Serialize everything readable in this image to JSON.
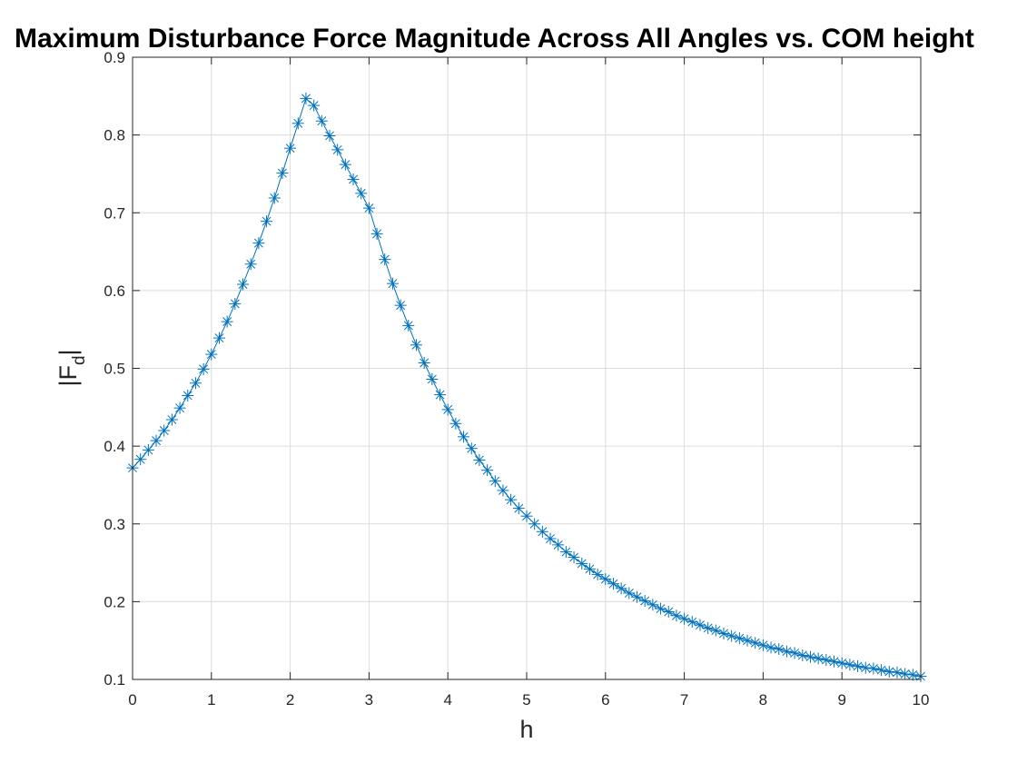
{
  "chart_data": {
    "type": "line",
    "title": "Maximum Disturbance Force Magnitude Across All Angles vs. COM height",
    "xlabel": "h",
    "ylabel": {
      "main": "|F",
      "subscript": "d",
      "suffix": "|"
    },
    "xlim": [
      0,
      10
    ],
    "ylim": [
      0.1,
      0.9
    ],
    "xticks": [
      0,
      1,
      2,
      3,
      4,
      5,
      6,
      7,
      8,
      9,
      10
    ],
    "yticks": [
      0.1,
      0.2,
      0.3,
      0.4,
      0.5,
      0.6,
      0.7,
      0.8,
      0.9
    ],
    "xtick_labels": [
      "0",
      "1",
      "2",
      "3",
      "4",
      "5",
      "6",
      "7",
      "8",
      "9",
      "10"
    ],
    "ytick_labels": [
      "0.1",
      "0.2",
      "0.3",
      "0.4",
      "0.5",
      "0.6",
      "0.7",
      "0.8",
      "0.9"
    ],
    "grid": true,
    "marker": "asterisk",
    "series": [
      {
        "color": "#0072BD",
        "x": [
          0.0,
          0.1,
          0.2,
          0.3,
          0.4,
          0.5,
          0.6,
          0.7,
          0.8,
          0.9,
          1.0,
          1.1,
          1.2,
          1.3,
          1.4,
          1.5,
          1.6,
          1.7,
          1.8,
          1.9,
          2.0,
          2.1,
          2.2,
          2.3,
          2.4,
          2.5,
          2.6,
          2.7,
          2.8,
          2.9,
          3.0,
          3.1,
          3.2,
          3.3,
          3.4,
          3.5,
          3.6,
          3.7,
          3.8,
          3.9,
          4.0,
          4.1,
          4.2,
          4.3,
          4.4,
          4.5,
          4.6,
          4.7,
          4.8,
          4.9,
          5.0,
          5.1,
          5.2,
          5.3,
          5.4,
          5.5,
          5.6,
          5.7,
          5.8,
          5.9,
          6.0,
          6.1,
          6.2,
          6.3,
          6.4,
          6.5,
          6.6,
          6.7,
          6.8,
          6.9,
          7.0,
          7.1,
          7.2,
          7.3,
          7.4,
          7.5,
          7.6,
          7.7,
          7.8,
          7.9,
          8.0,
          8.1,
          8.2,
          8.3,
          8.4,
          8.5,
          8.6,
          8.7,
          8.8,
          8.9,
          9.0,
          9.1,
          9.2,
          9.3,
          9.4,
          9.5,
          9.6,
          9.7,
          9.8,
          9.9,
          10.0
        ],
        "values": [
          0.372,
          0.383,
          0.395,
          0.407,
          0.42,
          0.434,
          0.449,
          0.465,
          0.481,
          0.499,
          0.518,
          0.539,
          0.56,
          0.583,
          0.608,
          0.634,
          0.661,
          0.689,
          0.719,
          0.751,
          0.783,
          0.815,
          0.847,
          0.838,
          0.818,
          0.799,
          0.781,
          0.762,
          0.743,
          0.725,
          0.706,
          0.673,
          0.64,
          0.609,
          0.581,
          0.555,
          0.53,
          0.507,
          0.486,
          0.466,
          0.447,
          0.429,
          0.412,
          0.397,
          0.382,
          0.369,
          0.355,
          0.343,
          0.331,
          0.32,
          0.31,
          0.3,
          0.29,
          0.281,
          0.273,
          0.264,
          0.257,
          0.249,
          0.242,
          0.235,
          0.229,
          0.223,
          0.217,
          0.211,
          0.206,
          0.201,
          0.196,
          0.191,
          0.187,
          0.182,
          0.178,
          0.174,
          0.17,
          0.166,
          0.163,
          0.159,
          0.156,
          0.153,
          0.15,
          0.147,
          0.144,
          0.141,
          0.139,
          0.136,
          0.134,
          0.131,
          0.129,
          0.127,
          0.125,
          0.123,
          0.121,
          0.119,
          0.117,
          0.115,
          0.114,
          0.112,
          0.11,
          0.109,
          0.107,
          0.106,
          0.104
        ]
      }
    ]
  }
}
